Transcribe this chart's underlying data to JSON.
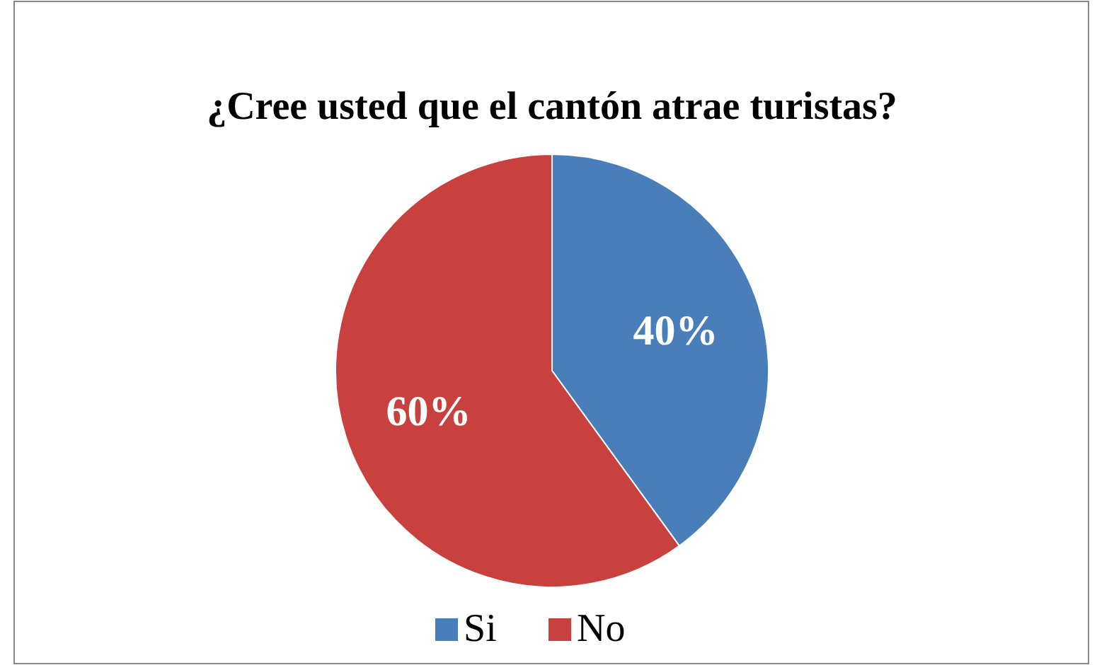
{
  "chart_data": {
    "type": "pie",
    "title": "¿Cree usted que el cantón atrae turistas?",
    "categories": [
      "Si",
      "No"
    ],
    "values": [
      40,
      60
    ],
    "colors": [
      "#4a7ebb",
      "#c9413e"
    ],
    "value_labels": [
      "40%",
      "60%"
    ],
    "legend": "bottom"
  }
}
